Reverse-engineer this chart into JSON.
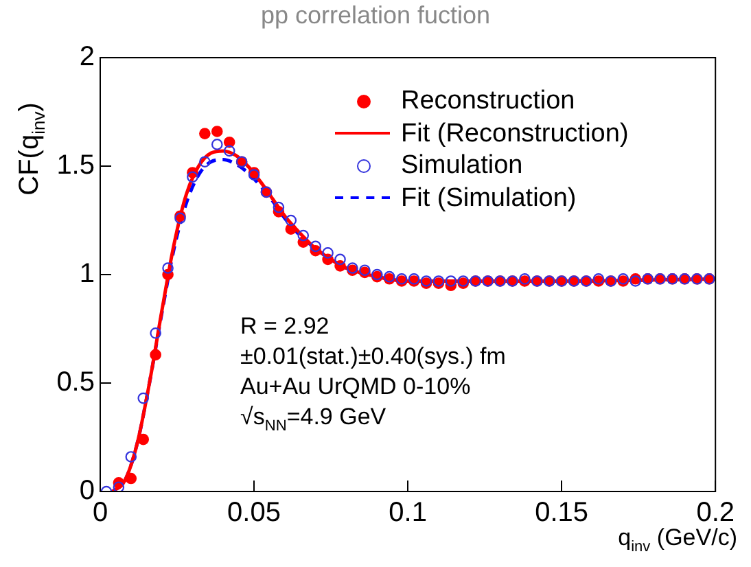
{
  "chart_data": {
    "type": "scatter",
    "title": "pp correlation fuction",
    "xlabel": "q$_{inv}$ (GeV/c)",
    "ylabel": "CF(q$_{inv}$)",
    "annotations": [
      "R = 2.92",
      "±0.01(stat.)±0.40(sys.) fm",
      "Au+Au UrQMD 0-10%",
      "√s$_{NN}$=4.9 GeV"
    ],
    "xlim": [
      0,
      0.2
    ],
    "xticks": [
      0,
      0.05,
      0.1,
      0.15,
      0.2
    ],
    "ylim": [
      0,
      2
    ],
    "yticks": [
      0,
      0.5,
      1,
      1.5,
      2
    ],
    "grid": false,
    "legend": "top right",
    "series": [
      {
        "name": "Reconstruction",
        "marker": "circle",
        "color": "#ff0000",
        "x": [
          0.006,
          0.01,
          0.014,
          0.018,
          0.022,
          0.026,
          0.03,
          0.034,
          0.038,
          0.042,
          0.046,
          0.05,
          0.054,
          0.058,
          0.062,
          0.066,
          0.07,
          0.074,
          0.078,
          0.082,
          0.086,
          0.09,
          0.094,
          0.098,
          0.102,
          0.106,
          0.11,
          0.114,
          0.118,
          0.122,
          0.126,
          0.13,
          0.134,
          0.138,
          0.142,
          0.146,
          0.15,
          0.154,
          0.158,
          0.162,
          0.166,
          0.17,
          0.174,
          0.178,
          0.182,
          0.186,
          0.19,
          0.194,
          0.198
        ],
        "values": [
          0.04,
          0.06,
          0.24,
          0.63,
          1.0,
          1.27,
          1.47,
          1.65,
          1.66,
          1.61,
          1.52,
          1.47,
          1.38,
          1.29,
          1.21,
          1.15,
          1.11,
          1.07,
          1.04,
          1.02,
          1.01,
          0.99,
          0.98,
          0.97,
          0.97,
          0.96,
          0.96,
          0.95,
          0.96,
          0.97,
          0.97,
          0.97,
          0.97,
          0.97,
          0.97,
          0.97,
          0.97,
          0.97,
          0.97,
          0.97,
          0.97,
          0.97,
          0.98,
          0.98,
          0.98,
          0.98,
          0.98,
          0.98,
          0.98
        ]
      },
      {
        "name": "Fit (Reconstruction)",
        "type": "line",
        "marker": "none",
        "line_style": "solid",
        "color": "#ff0000",
        "x": [
          0.004,
          0.008,
          0.012,
          0.016,
          0.02,
          0.024,
          0.028,
          0.032,
          0.036,
          0.04,
          0.044,
          0.048,
          0.052,
          0.056,
          0.06,
          0.065,
          0.07,
          0.075,
          0.08,
          0.09,
          0.1,
          0.12,
          0.15,
          0.2
        ],
        "values": [
          0.0,
          0.05,
          0.22,
          0.5,
          0.83,
          1.14,
          1.37,
          1.5,
          1.56,
          1.57,
          1.55,
          1.5,
          1.43,
          1.35,
          1.27,
          1.19,
          1.12,
          1.07,
          1.03,
          0.99,
          0.97,
          0.97,
          0.97,
          0.98
        ]
      },
      {
        "name": "Simulation",
        "marker": "open circle",
        "color": "#3333dd",
        "x": [
          0.002,
          0.006,
          0.01,
          0.014,
          0.018,
          0.022,
          0.026,
          0.03,
          0.034,
          0.038,
          0.042,
          0.046,
          0.05,
          0.054,
          0.058,
          0.062,
          0.066,
          0.07,
          0.074,
          0.078,
          0.082,
          0.086,
          0.09,
          0.094,
          0.098,
          0.102,
          0.106,
          0.11,
          0.114,
          0.118,
          0.122,
          0.126,
          0.13,
          0.134,
          0.138,
          0.142,
          0.146,
          0.15,
          0.154,
          0.158,
          0.162,
          0.166,
          0.17,
          0.174,
          0.178,
          0.182,
          0.186,
          0.19,
          0.194,
          0.198
        ],
        "values": [
          0.0,
          0.02,
          0.16,
          0.43,
          0.73,
          1.03,
          1.26,
          1.45,
          1.52,
          1.6,
          1.57,
          1.52,
          1.46,
          1.38,
          1.31,
          1.25,
          1.18,
          1.13,
          1.1,
          1.07,
          1.03,
          1.02,
          1.0,
          0.99,
          0.98,
          0.98,
          0.97,
          0.97,
          0.97,
          0.97,
          0.97,
          0.97,
          0.97,
          0.97,
          0.98,
          0.97,
          0.97,
          0.97,
          0.97,
          0.97,
          0.98,
          0.97,
          0.98,
          0.97,
          0.98,
          0.98,
          0.98,
          0.98,
          0.98,
          0.98
        ]
      },
      {
        "name": "Fit (Simulation)",
        "type": "line",
        "marker": "none",
        "line_style": "dashed",
        "color": "#0000ff",
        "x": [
          0.004,
          0.008,
          0.012,
          0.016,
          0.02,
          0.024,
          0.028,
          0.032,
          0.036,
          0.04,
          0.044,
          0.048,
          0.052,
          0.056,
          0.06,
          0.065,
          0.07,
          0.075,
          0.08,
          0.09,
          0.1,
          0.12,
          0.15,
          0.2
        ],
        "values": [
          0.0,
          0.05,
          0.22,
          0.5,
          0.82,
          1.12,
          1.33,
          1.46,
          1.52,
          1.53,
          1.51,
          1.47,
          1.41,
          1.34,
          1.26,
          1.18,
          1.12,
          1.07,
          1.03,
          0.99,
          0.97,
          0.97,
          0.97,
          0.98
        ]
      }
    ]
  }
}
